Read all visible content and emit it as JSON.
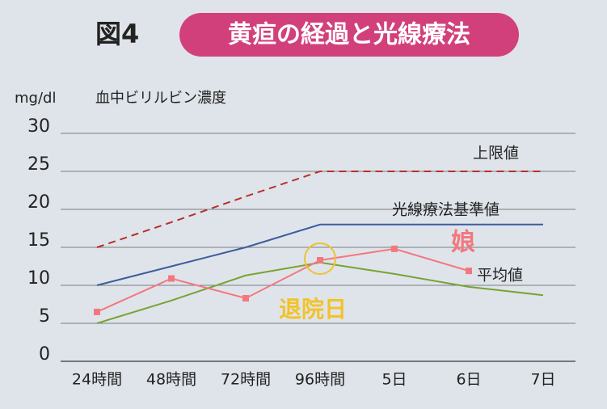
{
  "figure_label": "図4",
  "chart_data": {
    "type": "line",
    "title": "黄疸の経過と光線療法",
    "y_unit": "mg/dl",
    "y_label": "血中ビリルビン濃度",
    "categories": [
      "24時間",
      "48時間",
      "72時間",
      "96時間",
      "5日",
      "6日",
      "7日"
    ],
    "ylim": [
      0,
      30
    ],
    "yticks": [
      0,
      5,
      10,
      15,
      20,
      25,
      30
    ],
    "grid": true,
    "series": [
      {
        "name": "上限値",
        "color": "#b8302c",
        "style": "dashed",
        "values": [
          15,
          18.3,
          21.7,
          25,
          25,
          25,
          25
        ]
      },
      {
        "name": "光線療法基準値",
        "color": "#3c5c9c",
        "style": "solid",
        "values": [
          10,
          12.5,
          15,
          18,
          18,
          18,
          18
        ]
      },
      {
        "name": "平均値",
        "color": "#7aa232",
        "style": "solid",
        "values": [
          5,
          8,
          11.3,
          13,
          11.5,
          9.8,
          8.7
        ]
      },
      {
        "name": "娘",
        "color": "#f2787e",
        "style": "solid",
        "marker": "square",
        "values": [
          6.5,
          10.9,
          8.3,
          13.3,
          14.8,
          11.9,
          null
        ]
      }
    ],
    "annotation": "退院日"
  }
}
